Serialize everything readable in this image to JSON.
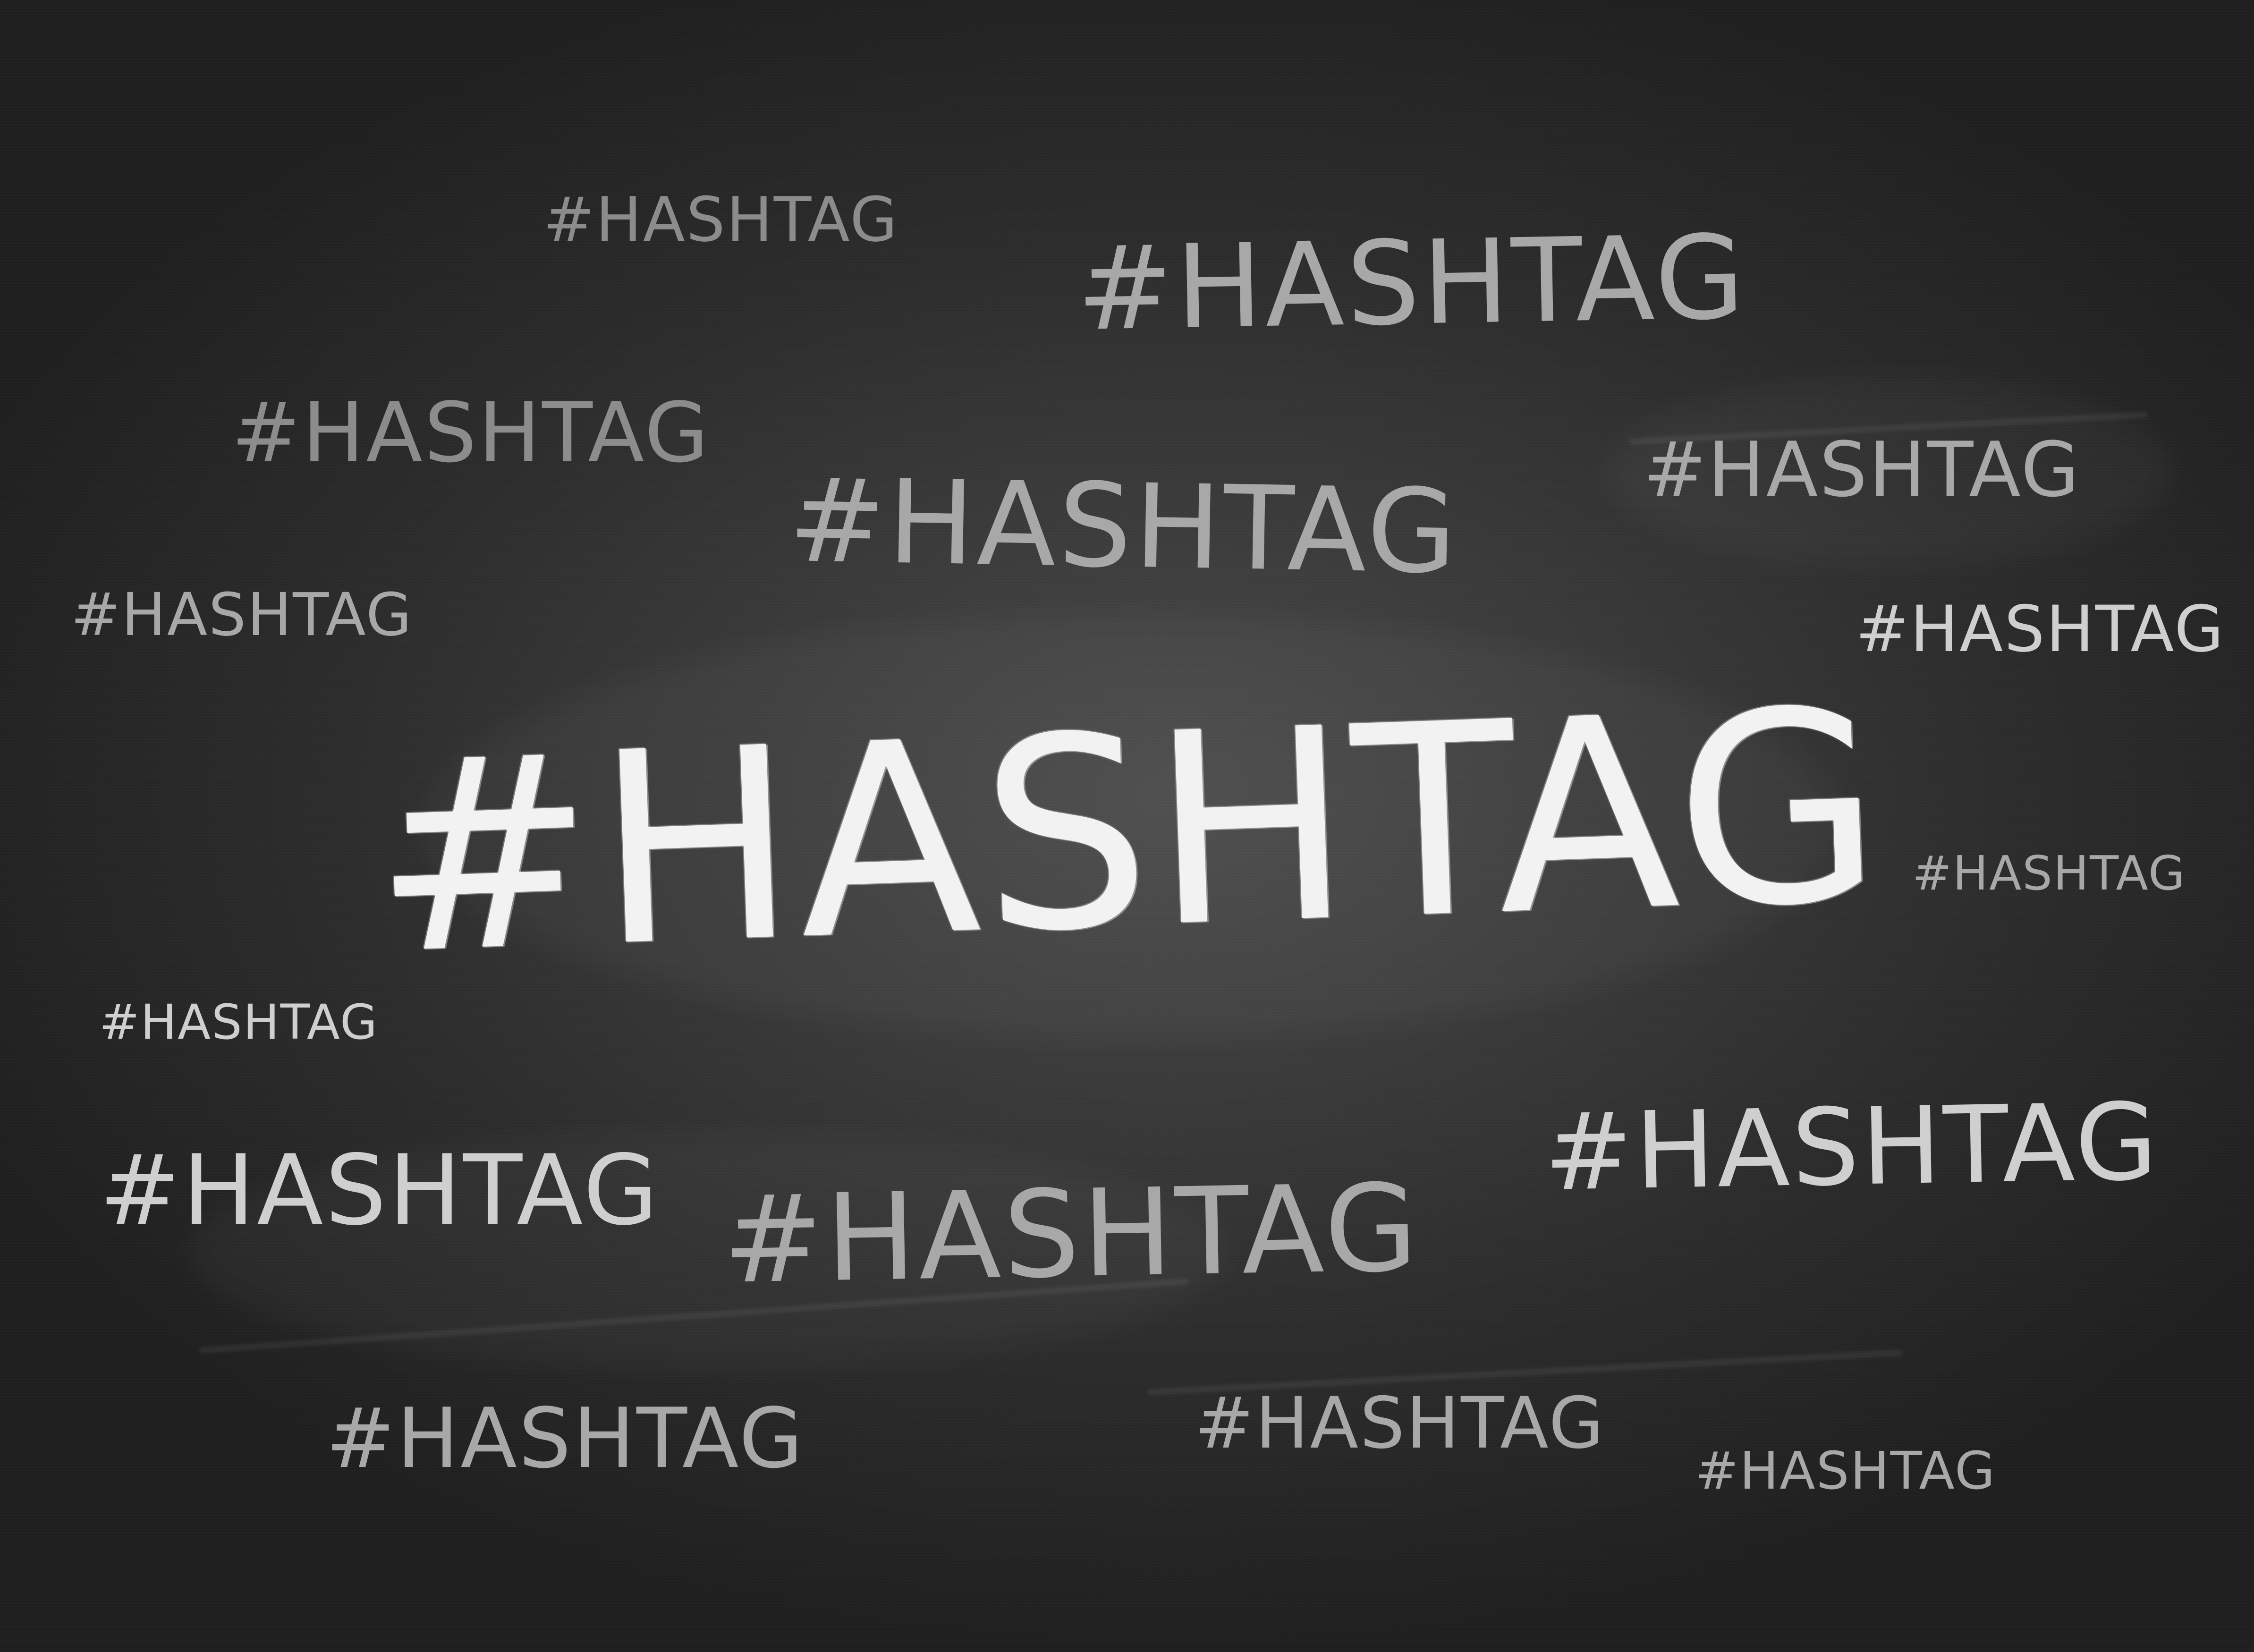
{
  "colors": {
    "board": "#2a2a2a",
    "chalk_bright": "#f2f2f2",
    "chalk_light": "#cfcfcf",
    "chalk_mid": "#a8a8a8",
    "chalk_dim": "#8c8c8c"
  },
  "words": [
    {
      "text": "#HASHTAG",
      "tone": "chalk_dim"
    },
    {
      "text": "#HASHTAG",
      "tone": "chalk_mid"
    },
    {
      "text": "#HASHTAG",
      "tone": "chalk_dim"
    },
    {
      "text": "#HASHTAG",
      "tone": "chalk_mid"
    },
    {
      "text": "#HASHTAG",
      "tone": "chalk_mid"
    },
    {
      "text": "#HASHTAG",
      "tone": "chalk_mid"
    },
    {
      "text": "#HASHTAG",
      "tone": "chalk_light"
    },
    {
      "text": "#HASHTAG",
      "tone": "chalk_bright"
    },
    {
      "text": "#HASHTAG",
      "tone": "chalk_mid"
    },
    {
      "text": "#HASHTAG",
      "tone": "chalk_light"
    },
    {
      "text": "#HASHTAG",
      "tone": "chalk_light"
    },
    {
      "text": "#HASHTAG",
      "tone": "chalk_light"
    },
    {
      "text": "#HASHTAG",
      "tone": "chalk_mid"
    },
    {
      "text": "#HASHTAG",
      "tone": "chalk_mid"
    },
    {
      "text": "#HASHTAG",
      "tone": "chalk_mid"
    },
    {
      "text": "#HASHTAG",
      "tone": "chalk_mid"
    }
  ]
}
